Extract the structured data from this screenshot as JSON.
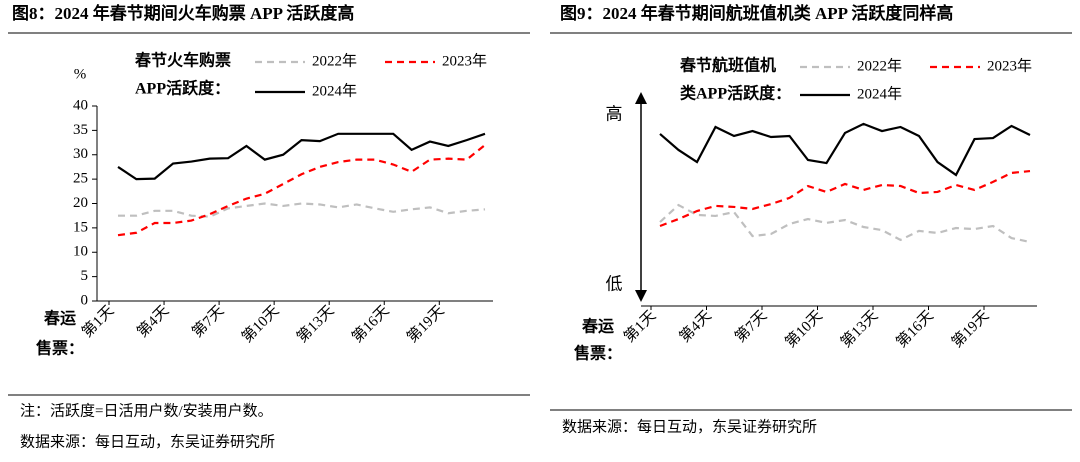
{
  "chart_data": [
    {
      "type": "line",
      "title": "图8：2024 年春节期间火车购票 APP 活跃度高",
      "y_label": "%",
      "x_label": [
        "春运",
        "售票："
      ],
      "legend_title": [
        "春节火车购票",
        "APP活跃度："
      ],
      "categories": [
        "第1天",
        null,
        null,
        "第4天",
        null,
        null,
        "第7天",
        null,
        null,
        "第10天",
        null,
        null,
        "第13天",
        null,
        null,
        "第16天",
        null,
        null,
        "第19天",
        null,
        null
      ],
      "ylim": [
        0,
        40
      ],
      "yticks": [
        0,
        5,
        10,
        15,
        20,
        25,
        30,
        35,
        40
      ],
      "series": [
        {
          "name": "2022年",
          "color": "#bfbfbf",
          "dashed": true,
          "values": [
            17.5,
            17.5,
            18.5,
            18.5,
            17.5,
            17.3,
            19,
            19.5,
            20,
            19.5,
            20,
            19.8,
            19.2,
            19.8,
            19,
            18.3,
            18.8,
            19.2,
            18,
            18.5,
            18.8
          ]
        },
        {
          "name": "2023年",
          "color": "#ff0000",
          "dashed": true,
          "values": [
            13.5,
            14,
            16,
            16,
            16.5,
            17.8,
            19.5,
            21,
            22,
            24,
            26,
            27.5,
            28.5,
            29,
            29,
            28,
            26.5,
            29,
            29.2,
            29,
            32
          ]
        },
        {
          "name": "2024年",
          "color": "#000000",
          "dashed": false,
          "values": [
            27.5,
            25,
            25.1,
            28.2,
            28.6,
            29.2,
            29.3,
            31.8,
            29,
            30,
            33,
            32.8,
            34.3,
            34.3,
            34.3,
            34.3,
            31,
            32.7,
            31.8,
            33,
            34.3
          ]
        }
      ]
    },
    {
      "type": "line",
      "title": "图9：2024 年春节期间航班值机类 APP 活跃度同样高",
      "x_label": [
        "春运",
        "售票："
      ],
      "legend_title": [
        "春节航班值机",
        "类APP活跃度："
      ],
      "categories": [
        "第1天",
        null,
        null,
        "第4天",
        null,
        null,
        "第7天",
        null,
        null,
        "第10天",
        null,
        null,
        "第13天",
        null,
        null,
        "第16天",
        null,
        null,
        "第19天",
        null,
        null
      ],
      "ylim": [
        0,
        100
      ],
      "yticks": [
        {
          "value": 90,
          "label": "高"
        },
        {
          "value": 7,
          "label": "低"
        }
      ],
      "series": [
        {
          "name": "2022年",
          "color": "#bfbfbf",
          "dashed": true,
          "values": [
            38,
            46.3,
            41.5,
            41,
            42.9,
            31.2,
            32.2,
            37.1,
            39.5,
            37.6,
            39,
            35.6,
            34.1,
            29.3,
            33.7,
            32.7,
            35.1,
            34.6,
            36.1,
            30.2,
            28.3
          ]
        },
        {
          "name": "2023年",
          "color": "#ff0000",
          "dashed": true,
          "values": [
            36.1,
            39.5,
            43.4,
            45.9,
            45.4,
            44.4,
            46.8,
            49.8,
            55.6,
            52.7,
            56.6,
            53.7,
            56.1,
            55.6,
            52.2,
            52.7,
            56.1,
            53.7,
            57.6,
            62,
            62.9
          ]
        },
        {
          "name": "2024年",
          "color": "#000000",
          "dashed": false,
          "values": [
            81,
            73.2,
            67.3,
            84.4,
            80,
            82.4,
            79.5,
            80,
            68.3,
            66.8,
            81.5,
            85.9,
            82.4,
            84.4,
            80,
            67.3,
            61,
            78.5,
            79,
            84.9,
            80.5
          ]
        }
      ]
    }
  ],
  "left_notes": [
    "注：活跃度=日活用户数/安装用户数。",
    "数据来源：每日互动，东吴证券研究所"
  ],
  "right_notes": [
    "数据来源：每日互动，东吴证券研究所"
  ]
}
